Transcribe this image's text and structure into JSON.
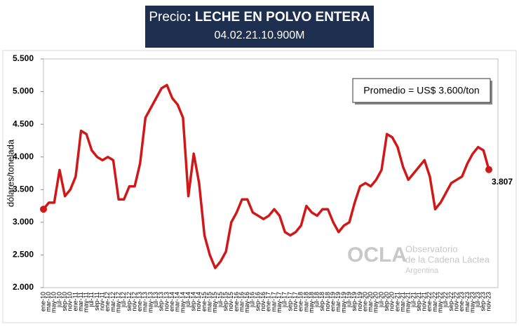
{
  "chart_data": {
    "type": "line",
    "title_lead": "Precio",
    "title": ": LECHE EN POLVO ENTERA",
    "subtitle": "04.02.21.10.900M",
    "ylabel": "dólares/tonelada",
    "note": "Promedio = US$ 3.600/ton",
    "watermark": {
      "logo": "OCLA",
      "lines": [
        "Observatorio",
        "de la Cadena Láctea",
        "Argentina"
      ]
    },
    "color": "#d01818",
    "categories": [
      "ene-10",
      "mar-10",
      "may-10",
      "jul-10",
      "sep-10",
      "nov-10",
      "ene-11",
      "mar-11",
      "may-11",
      "jul-11",
      "sep-11",
      "nov-11",
      "ene-12",
      "mar-12",
      "may-12",
      "jul-12",
      "sep-12",
      "nov-12",
      "ene-13",
      "mar-13",
      "may-13",
      "jul-13",
      "sep-13",
      "nov-13",
      "ene-14",
      "mar-14",
      "may-14",
      "jul-14",
      "sep-14",
      "nov-14",
      "ene-15",
      "mar-15",
      "may-15",
      "jul-15",
      "sep-15",
      "nov-15",
      "ene-16",
      "mar-16",
      "may-16",
      "jul-16",
      "sep-16",
      "nov-16",
      "ene-17",
      "mar-17",
      "may-17",
      "jul-17",
      "sep-17",
      "nov-17",
      "ene-18",
      "mar-18",
      "may-18",
      "jul-18",
      "sep-18",
      "nov-18",
      "ene-19",
      "mar-19",
      "may-19",
      "jul-19",
      "sep-19",
      "nov-19",
      "ene-20",
      "mar-20",
      "may-20",
      "jul-20",
      "sep-20",
      "nov-20",
      "ene-21",
      "mar-21",
      "may-21",
      "jul-21",
      "sep-21",
      "nov-21",
      "ene-22",
      "mar-22",
      "may-22",
      "jul-22",
      "sep-22",
      "nov-22",
      "ene-23",
      "mar-23",
      "may-23",
      "jul-23",
      "sep-23",
      "nov-23"
    ],
    "values": [
      3200,
      3300,
      3300,
      3800,
      3400,
      3500,
      3700,
      4400,
      4350,
      4100,
      4000,
      3950,
      4000,
      3950,
      3350,
      3350,
      3550,
      3550,
      3900,
      4600,
      4750,
      4900,
      5050,
      5100,
      4900,
      4800,
      4600,
      3400,
      4050,
      3600,
      2800,
      2500,
      2300,
      2400,
      2550,
      3000,
      3150,
      3350,
      3350,
      3150,
      3100,
      3050,
      3100,
      3200,
      3100,
      2850,
      2800,
      2850,
      2950,
      3250,
      3150,
      3100,
      3200,
      3200,
      3000,
      2850,
      2950,
      3000,
      3300,
      3550,
      3600,
      3550,
      3650,
      3800,
      4350,
      4300,
      4150,
      3850,
      3650,
      3750,
      3850,
      3950,
      3700,
      3200,
      3300,
      3450,
      3600,
      3650,
      3700,
      3900,
      4050,
      4150,
      4100,
      3807
    ],
    "value_labels": [
      null,
      null,
      null,
      null,
      null,
      null,
      null,
      null,
      null,
      null,
      null,
      null,
      null,
      null,
      null,
      null,
      null,
      null,
      null,
      null,
      null,
      null,
      null,
      null,
      null,
      null,
      null,
      null,
      null,
      null,
      null,
      null,
      null,
      null,
      null,
      null,
      null,
      null,
      null,
      null,
      null,
      null,
      null,
      null,
      null,
      null,
      null,
      null,
      null,
      null,
      null,
      null,
      null,
      null,
      null,
      null,
      null,
      null,
      null,
      null,
      null,
      null,
      null,
      null,
      null,
      null,
      null,
      null,
      null,
      null,
      null,
      null,
      null,
      null,
      null,
      null,
      null,
      null,
      null,
      null,
      null,
      null,
      null,
      "3.807"
    ],
    "ylim": [
      2000,
      5500
    ],
    "yticks": [
      {
        "value": 2000,
        "label": "2.000"
      },
      {
        "value": 2500,
        "label": "2.500"
      },
      {
        "value": 3000,
        "label": "3.000"
      },
      {
        "value": 3500,
        "label": "3.500"
      },
      {
        "value": 4000,
        "label": "4.000"
      },
      {
        "value": 4500,
        "label": "4.500"
      },
      {
        "value": 5000,
        "label": "5.000"
      },
      {
        "value": 5500,
        "label": "5.500"
      }
    ],
    "grid": false
  }
}
